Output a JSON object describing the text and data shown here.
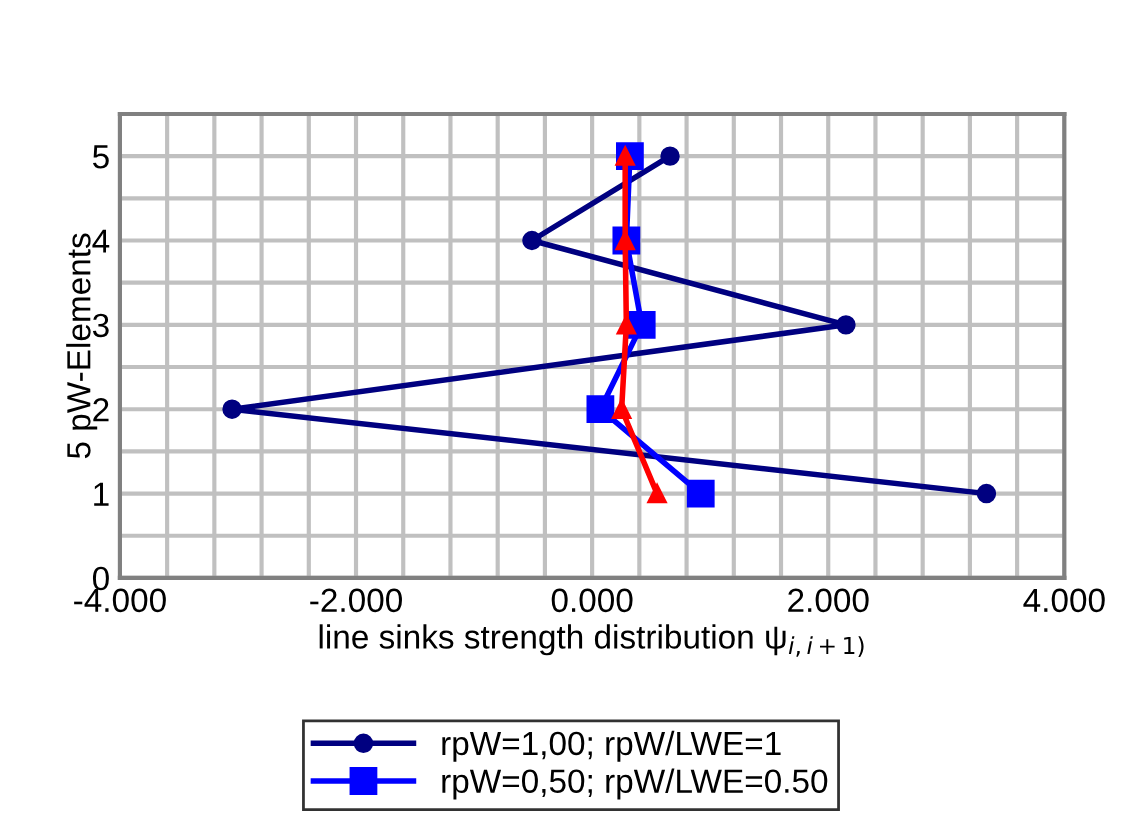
{
  "chart_data": {
    "type": "line",
    "xlabel": "line sinks strength distribution ψ$_{i,i+1)}$",
    "ylabel": "5 pW-Elements",
    "xlim": [
      -4,
      4
    ],
    "ylim": [
      0,
      5.5
    ],
    "xticks": [
      {
        "value": -4,
        "label": "-4.000"
      },
      {
        "value": -3.6,
        "label": null
      },
      {
        "value": -3.2,
        "label": null
      },
      {
        "value": -2.8,
        "label": null
      },
      {
        "value": -2.4,
        "label": null
      },
      {
        "value": -2,
        "label": "-2.000"
      },
      {
        "value": -1.6,
        "label": null
      },
      {
        "value": -1.2,
        "label": null
      },
      {
        "value": -0.8,
        "label": null
      },
      {
        "value": -0.4,
        "label": null
      },
      {
        "value": 0,
        "label": "0.000"
      },
      {
        "value": 0.4,
        "label": null
      },
      {
        "value": 0.8,
        "label": null
      },
      {
        "value": 1.2,
        "label": null
      },
      {
        "value": 1.6,
        "label": null
      },
      {
        "value": 2,
        "label": "2.000"
      },
      {
        "value": 2.4,
        "label": null
      },
      {
        "value": 2.8,
        "label": null
      },
      {
        "value": 3.2,
        "label": null
      },
      {
        "value": 3.6,
        "label": null
      },
      {
        "value": 4,
        "label": "4.000"
      }
    ],
    "yticks": [
      0,
      {
        "value": 0.5,
        "label": null
      },
      1,
      {
        "value": 1.5,
        "label": null
      },
      2,
      {
        "value": 2.5,
        "label": null
      },
      3,
      {
        "value": 3.5,
        "label": null
      },
      4,
      {
        "value": 4.5,
        "label": null
      },
      5,
      {
        "value": 5.5,
        "label": null
      }
    ],
    "grid": true,
    "legend": "bottom",
    "line_style": "solid",
    "series": [
      {
        "name": "rpW=1,00; rpW/LWE=1",
        "color": "#000080",
        "marker": "circle",
        "x": [
          3.34,
          -3.05,
          2.15,
          -0.51,
          0.66
        ],
        "values": [
          1,
          2,
          3,
          4,
          5
        ]
      },
      {
        "name": "rpW=0,50; rpW/LWE=0.50",
        "color": "#0000ff",
        "marker": "square",
        "x": [
          0.92,
          0.07,
          0.42,
          0.29,
          0.32
        ],
        "values": [
          1,
          2,
          3,
          4,
          5
        ]
      },
      {
        "color": "#ff0000",
        "marker": "triangle",
        "x": [
          0.55,
          0.25,
          0.29,
          0.28,
          0.28
        ],
        "values": [
          1,
          2,
          3,
          4,
          5
        ]
      }
    ]
  }
}
